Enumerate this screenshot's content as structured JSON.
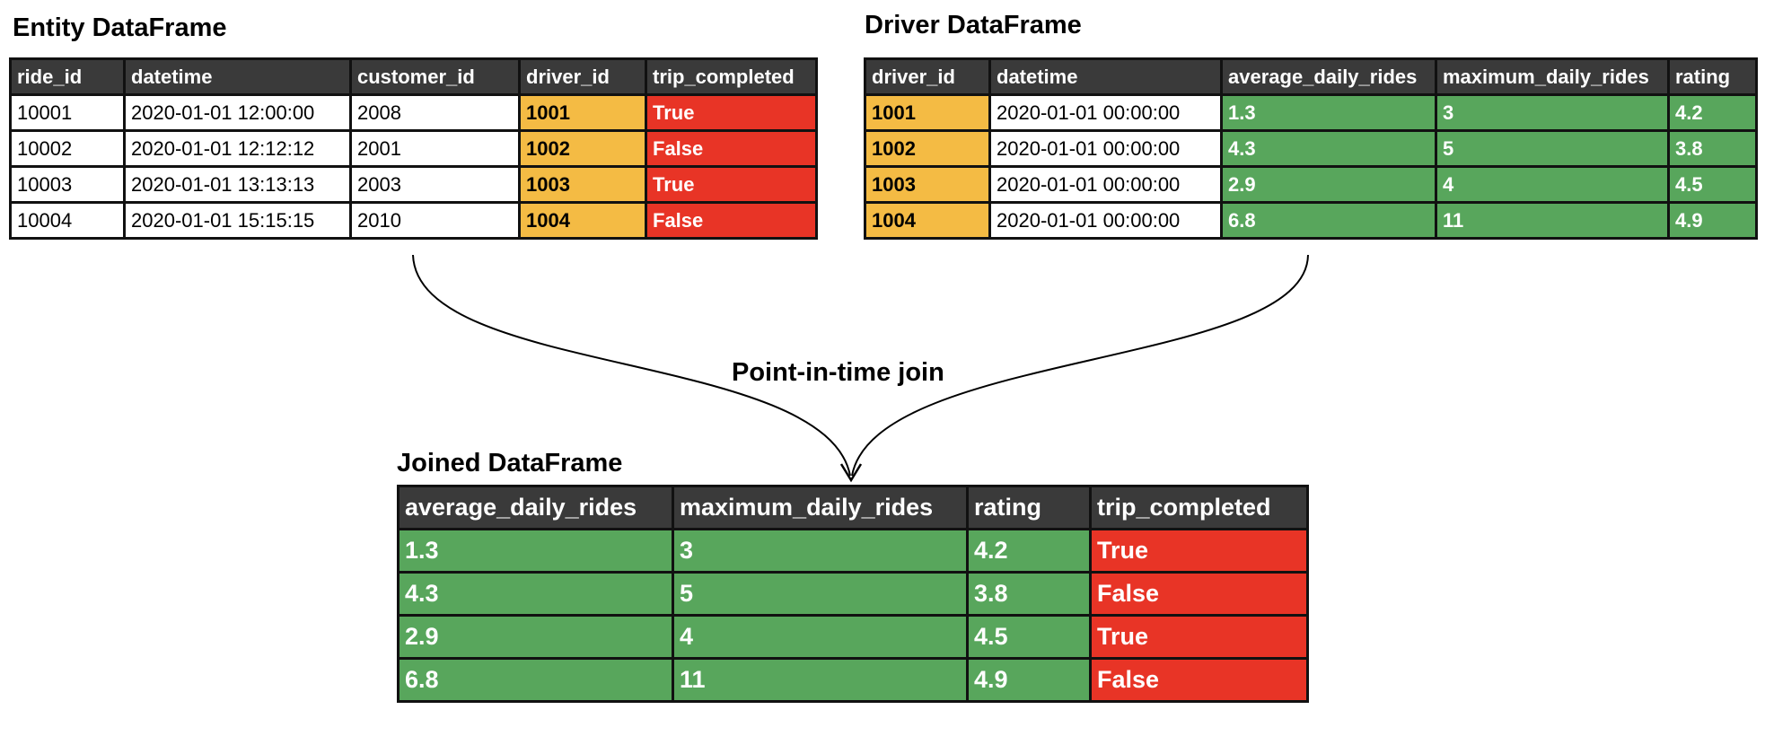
{
  "entity": {
    "title": "Entity DataFrame",
    "columns": [
      {
        "label": "ride_id",
        "kind": "plain"
      },
      {
        "label": "datetime",
        "kind": "plain"
      },
      {
        "label": "customer_id",
        "kind": "plain"
      },
      {
        "label": "driver_id",
        "kind": "key"
      },
      {
        "label": "trip_completed",
        "kind": "label"
      }
    ],
    "rows": [
      [
        "10001",
        "2020-01-01 12:00:00",
        "2008",
        "1001",
        "True"
      ],
      [
        "10002",
        "2020-01-01 12:12:12",
        "2001",
        "1002",
        "False"
      ],
      [
        "10003",
        "2020-01-01 13:13:13",
        "2003",
        "1003",
        "True"
      ],
      [
        "10004",
        "2020-01-01 15:15:15",
        "2010",
        "1004",
        "False"
      ]
    ]
  },
  "driver": {
    "title": "Driver DataFrame",
    "columns": [
      {
        "label": "driver_id",
        "kind": "key"
      },
      {
        "label": "datetime",
        "kind": "plain"
      },
      {
        "label": "average_daily_rides",
        "kind": "feat"
      },
      {
        "label": "maximum_daily_rides",
        "kind": "feat"
      },
      {
        "label": "rating",
        "kind": "feat"
      }
    ],
    "rows": [
      [
        "1001",
        "2020-01-01 00:00:00",
        "1.3",
        "3",
        "4.2"
      ],
      [
        "1002",
        "2020-01-01 00:00:00",
        "4.3",
        "5",
        "3.8"
      ],
      [
        "1003",
        "2020-01-01 00:00:00",
        "2.9",
        "4",
        "4.5"
      ],
      [
        "1004",
        "2020-01-01 00:00:00",
        "6.8",
        "11",
        "4.9"
      ]
    ]
  },
  "joined": {
    "title": "Joined DataFrame",
    "columns": [
      {
        "label": "average_daily_rides",
        "kind": "feat"
      },
      {
        "label": "maximum_daily_rides",
        "kind": "feat"
      },
      {
        "label": "rating",
        "kind": "feat"
      },
      {
        "label": "trip_completed",
        "kind": "label"
      }
    ],
    "rows": [
      [
        "1.3",
        "3",
        "4.2",
        "True"
      ],
      [
        "4.3",
        "5",
        "3.8",
        "False"
      ],
      [
        "2.9",
        "4",
        "4.5",
        "True"
      ],
      [
        "6.8",
        "11",
        "4.9",
        "False"
      ]
    ]
  },
  "join_label": "Point-in-time join",
  "colors": {
    "header": "#3a3a3a",
    "key": "#f4bb44",
    "feature": "#58a65c",
    "label": "#e83426",
    "border": "#111111"
  }
}
